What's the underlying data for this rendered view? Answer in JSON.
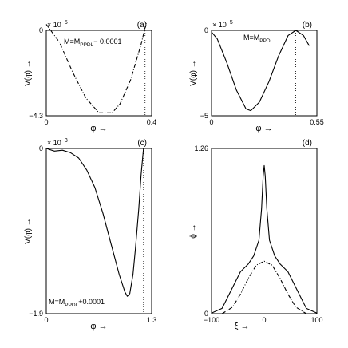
{
  "chart_data": [
    {
      "panel": "(a)",
      "type": "line",
      "ylabel": "V(φ) →",
      "xlabel": "φ →",
      "y_exponent": "× 10",
      "y_exponent_power": "−5",
      "annotation": "M=M",
      "annotation_sub": "PPDL",
      "annotation_suffix": "− 0.0001",
      "xlim": [
        0,
        0.4
      ],
      "ylim": [
        -4.3,
        0
      ],
      "x_ticks": [
        "0",
        "0.4"
      ],
      "y_ticks": [
        "0",
        "−4.3"
      ],
      "vline_x": 0.375,
      "series": [
        {
          "style": "dashdot",
          "x": [
            0,
            0.05,
            0.1,
            0.15,
            0.2,
            0.25,
            0.28,
            0.32,
            0.36,
            0.38
          ],
          "y": [
            0.3,
            -0.6,
            -2.1,
            -3.4,
            -4.15,
            -4.15,
            -3.7,
            -2.5,
            -0.7,
            0.4
          ]
        }
      ]
    },
    {
      "panel": "(b)",
      "type": "line",
      "ylabel": "V(φ) →",
      "xlabel": "φ →",
      "y_exponent": "× 10",
      "y_exponent_power": "−5",
      "annotation": "M=M",
      "annotation_sub": "PPDL",
      "annotation_suffix": "",
      "xlim": [
        0,
        0.55
      ],
      "ylim": [
        -5,
        0
      ],
      "x_ticks": [
        "0",
        "0.55"
      ],
      "y_ticks": [
        "0",
        "−5"
      ],
      "vline_x": 0.44,
      "series": [
        {
          "style": "solid",
          "x": [
            0,
            0.03,
            0.08,
            0.13,
            0.18,
            0.205,
            0.25,
            0.3,
            0.35,
            0.4,
            0.44,
            0.48,
            0.51
          ],
          "y": [
            -0.1,
            -0.5,
            -1.9,
            -3.5,
            -4.6,
            -4.7,
            -4.2,
            -3.0,
            -1.5,
            -0.3,
            0,
            -0.3,
            -0.9
          ]
        }
      ]
    },
    {
      "panel": "(c)",
      "type": "line",
      "ylabel": "V(φ) →",
      "xlabel": "φ →",
      "y_exponent": "× 10",
      "y_exponent_power": "−3",
      "annotation": "M=M",
      "annotation_sub": "PPDL",
      "annotation_suffix": "+0.0001",
      "xlim": [
        0,
        1.3
      ],
      "ylim": [
        -1.9,
        0
      ],
      "x_ticks": [
        "0",
        "1.3"
      ],
      "y_ticks": [
        "0",
        "−1.9"
      ],
      "vline_x": 1.2,
      "series": [
        {
          "style": "solid",
          "x": [
            0,
            0.1,
            0.2,
            0.3,
            0.4,
            0.5,
            0.6,
            0.7,
            0.8,
            0.9,
            0.97,
            1.0,
            1.03,
            1.07,
            1.1,
            1.14,
            1.17,
            1.2
          ],
          "y": [
            0,
            -0.03,
            -0.02,
            -0.05,
            -0.11,
            -0.25,
            -0.45,
            -0.75,
            -1.1,
            -1.45,
            -1.65,
            -1.7,
            -1.67,
            -1.45,
            -1.15,
            -0.7,
            -0.3,
            0
          ]
        }
      ]
    },
    {
      "panel": "(d)",
      "type": "line",
      "ylabel": "ϕ →",
      "xlabel": "ξ →",
      "xlim": [
        -100,
        100
      ],
      "ylim": [
        0,
        1.26
      ],
      "x_ticks": [
        "−100",
        "0",
        "100"
      ],
      "y_ticks": [
        "1.26",
        "0"
      ],
      "series": [
        {
          "style": "solid",
          "x": [
            -100,
            -80,
            -60,
            -45,
            -30,
            -20,
            -10,
            -5,
            -2,
            0,
            2,
            5,
            10,
            20,
            30,
            45,
            60,
            80,
            100
          ],
          "y": [
            0.005,
            0.04,
            0.2,
            0.32,
            0.38,
            0.44,
            0.56,
            0.8,
            1.05,
            1.13,
            1.05,
            0.8,
            0.56,
            0.44,
            0.38,
            0.32,
            0.2,
            0.04,
            0.005
          ]
        },
        {
          "style": "dashdot",
          "x": [
            -80,
            -60,
            -45,
            -30,
            -15,
            0,
            15,
            30,
            45,
            60,
            80
          ],
          "y": [
            0.0,
            0.05,
            0.15,
            0.27,
            0.37,
            0.4,
            0.37,
            0.27,
            0.15,
            0.05,
            0.0
          ]
        }
      ]
    }
  ]
}
